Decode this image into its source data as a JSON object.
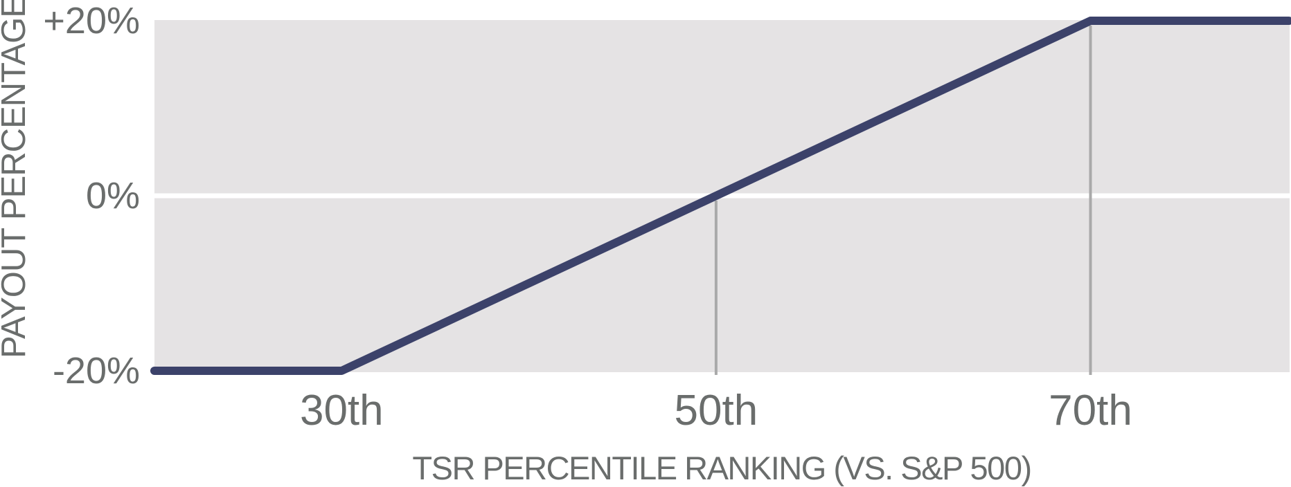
{
  "page": {
    "background": "#ffffff"
  },
  "chart_data": {
    "type": "line",
    "title": "",
    "xlabel": "TSR PERCENTILE RANKING (VS. S&P 500)",
    "ylabel": "PAYOUT PERCENTAGE",
    "xlim": [
      20,
      80.6
    ],
    "ylim": [
      -20,
      20
    ],
    "x_ticks": [
      {
        "value": 30,
        "label": "30th"
      },
      {
        "value": 50,
        "label": "50th"
      },
      {
        "value": 70,
        "label": "70th"
      }
    ],
    "y_ticks": [
      {
        "value": 20,
        "label": "+20%"
      },
      {
        "value": 0,
        "label": "0%"
      },
      {
        "value": -20,
        "label": "-20%"
      }
    ],
    "grid": {
      "horizontal_values": [
        0
      ],
      "vertical_tick_values": [
        50,
        70
      ]
    },
    "legend_position": "none",
    "series": [
      {
        "name": "payout-percentage-vs-tsr-percentile",
        "points": [
          [
            20,
            -20
          ],
          [
            30,
            -20
          ],
          [
            70,
            20
          ],
          [
            80.6,
            20
          ]
        ]
      }
    ],
    "colors": {
      "line": "#3c426a",
      "plot_background": "#e5e3e4",
      "zero_gridline": "#ffffff",
      "tick_gridline": "#a9a9a9",
      "axis_text": "#6a6d6c"
    }
  }
}
